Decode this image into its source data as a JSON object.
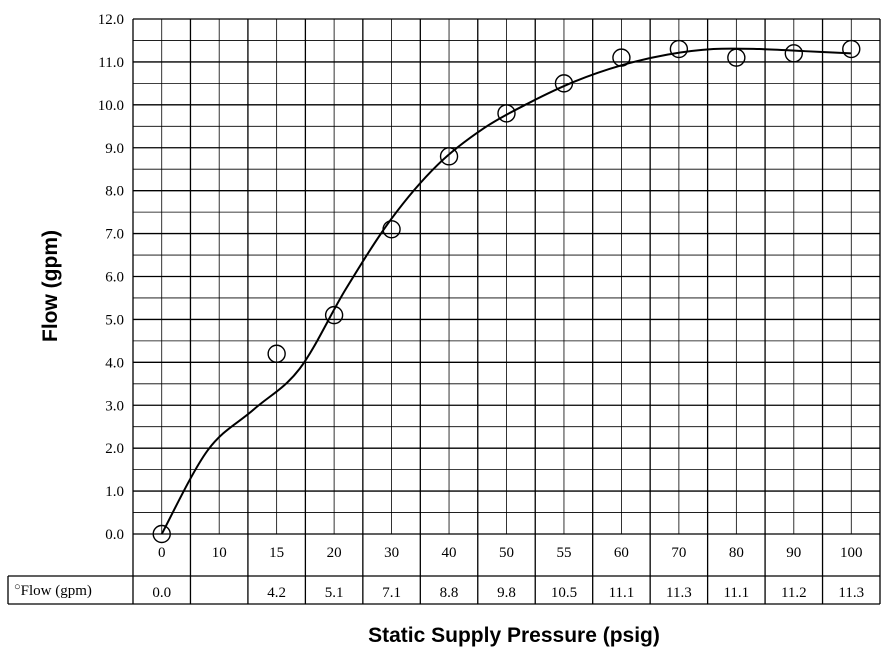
{
  "chart_data": {
    "type": "scatter",
    "xlabel": "Static Supply Pressure (psig)",
    "ylabel": "Flow (gpm)",
    "ylim": [
      0,
      12
    ],
    "categories": [
      "0",
      "10",
      "15",
      "20",
      "30",
      "40",
      "50",
      "55",
      "60",
      "70",
      "80",
      "90",
      "100"
    ],
    "y_ticks": [
      "0.0",
      "1.0",
      "2.0",
      "3.0",
      "4.0",
      "5.0",
      "6.0",
      "7.0",
      "8.0",
      "9.0",
      "10.0",
      "11.0",
      "12.0"
    ],
    "grid": true,
    "series": [
      {
        "name": "Flow (gpm)",
        "marker": "open-circle",
        "values": [
          0.0,
          null,
          4.2,
          5.1,
          7.1,
          8.8,
          9.8,
          10.5,
          11.1,
          11.3,
          11.1,
          11.2,
          11.3
        ]
      }
    ],
    "fit_curve": [
      0.0,
      1.95,
      2.9,
      3.85,
      5.7,
      7.35,
      8.6,
      9.45,
      10.05,
      10.55,
      10.92,
      11.17,
      11.3,
      11.3,
      11.25,
      11.2
    ],
    "table": {
      "row_label": "Flow (gpm)",
      "cells": [
        "0.0",
        "",
        "4.2",
        "5.1",
        "7.1",
        "8.8",
        "9.8",
        "10.5",
        "11.1",
        "11.3",
        "11.1",
        "11.2",
        "11.3"
      ]
    }
  }
}
